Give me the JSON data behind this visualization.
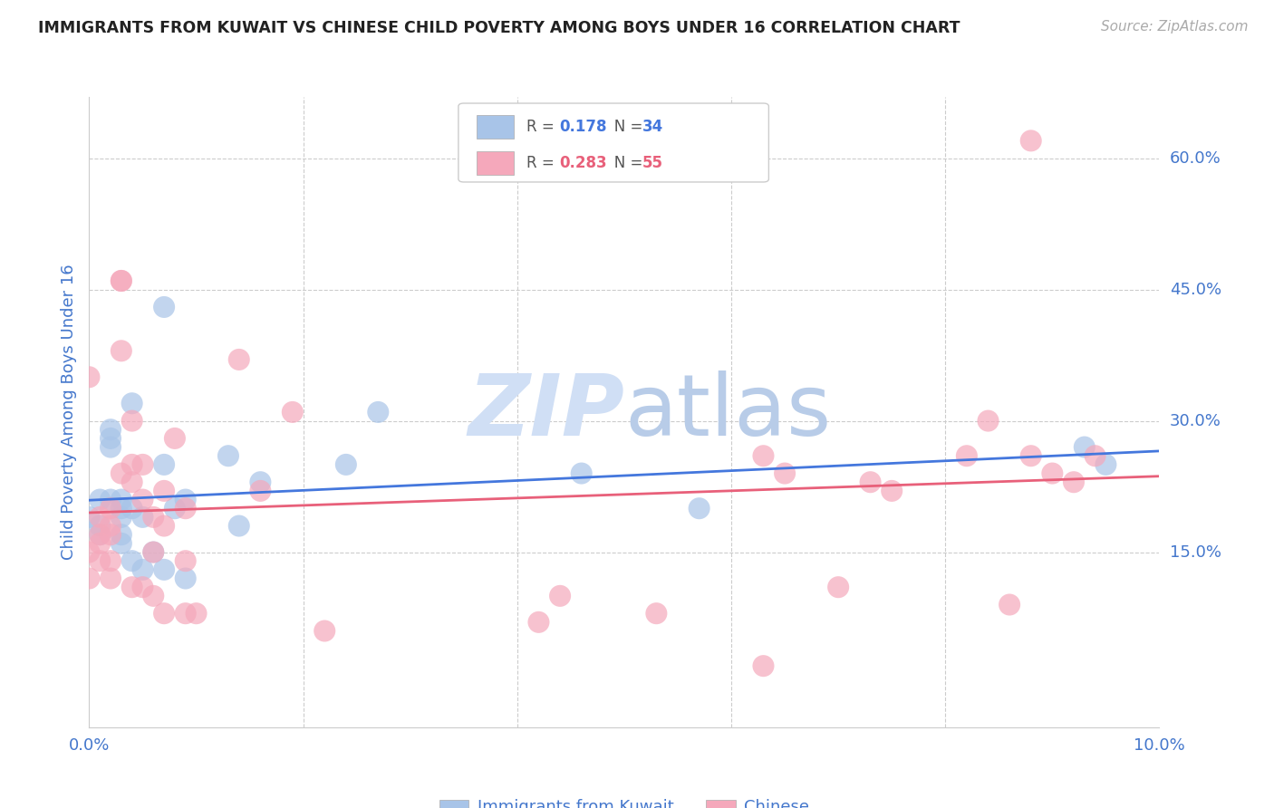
{
  "title": "IMMIGRANTS FROM KUWAIT VS CHINESE CHILD POVERTY AMONG BOYS UNDER 16 CORRELATION CHART",
  "source": "Source: ZipAtlas.com",
  "ylabel": "Child Poverty Among Boys Under 16",
  "kuwait_R": "0.178",
  "kuwait_N": "34",
  "chinese_R": "0.283",
  "chinese_N": "55",
  "kuwait_color": "#a8c4e8",
  "chinese_color": "#f5a8bb",
  "kuwait_line_color": "#4477dd",
  "chinese_line_color": "#e8607a",
  "background_color": "#ffffff",
  "axis_label_color": "#4477cc",
  "watermark_color": "#d0dff5",
  "xlim": [
    0.0,
    0.1
  ],
  "ylim": [
    -0.05,
    0.67
  ],
  "y_ticks": [
    0.15,
    0.3,
    0.45,
    0.6
  ],
  "x_ticks": [
    0.0,
    0.02,
    0.04,
    0.06,
    0.08,
    0.1
  ],
  "kuwait_x": [
    0.0,
    0.001,
    0.001,
    0.001,
    0.002,
    0.002,
    0.002,
    0.002,
    0.003,
    0.003,
    0.003,
    0.003,
    0.003,
    0.004,
    0.004,
    0.004,
    0.005,
    0.005,
    0.006,
    0.007,
    0.007,
    0.007,
    0.008,
    0.009,
    0.009,
    0.013,
    0.014,
    0.016,
    0.024,
    0.027,
    0.046,
    0.057,
    0.093,
    0.095
  ],
  "kuwait_y": [
    0.19,
    0.21,
    0.18,
    0.17,
    0.29,
    0.28,
    0.27,
    0.21,
    0.21,
    0.2,
    0.19,
    0.17,
    0.16,
    0.32,
    0.2,
    0.14,
    0.19,
    0.13,
    0.15,
    0.43,
    0.25,
    0.13,
    0.2,
    0.21,
    0.12,
    0.26,
    0.18,
    0.23,
    0.25,
    0.31,
    0.24,
    0.2,
    0.27,
    0.25
  ],
  "chinese_x": [
    0.0,
    0.0,
    0.0,
    0.001,
    0.001,
    0.001,
    0.001,
    0.002,
    0.002,
    0.002,
    0.002,
    0.002,
    0.003,
    0.003,
    0.003,
    0.003,
    0.004,
    0.004,
    0.004,
    0.004,
    0.005,
    0.005,
    0.005,
    0.006,
    0.006,
    0.006,
    0.007,
    0.007,
    0.007,
    0.008,
    0.009,
    0.009,
    0.009,
    0.01,
    0.014,
    0.016,
    0.019,
    0.022,
    0.042,
    0.044,
    0.053,
    0.063,
    0.063,
    0.065,
    0.07,
    0.073,
    0.075,
    0.082,
    0.084,
    0.086,
    0.088,
    0.088,
    0.09,
    0.092,
    0.094
  ],
  "chinese_y": [
    0.35,
    0.15,
    0.12,
    0.19,
    0.17,
    0.16,
    0.14,
    0.2,
    0.18,
    0.17,
    0.14,
    0.12,
    0.46,
    0.46,
    0.38,
    0.24,
    0.3,
    0.25,
    0.23,
    0.11,
    0.25,
    0.21,
    0.11,
    0.19,
    0.15,
    0.1,
    0.22,
    0.18,
    0.08,
    0.28,
    0.2,
    0.14,
    0.08,
    0.08,
    0.37,
    0.22,
    0.31,
    0.06,
    0.07,
    0.1,
    0.08,
    0.26,
    0.02,
    0.24,
    0.11,
    0.23,
    0.22,
    0.26,
    0.3,
    0.09,
    0.62,
    0.26,
    0.24,
    0.23,
    0.26
  ]
}
